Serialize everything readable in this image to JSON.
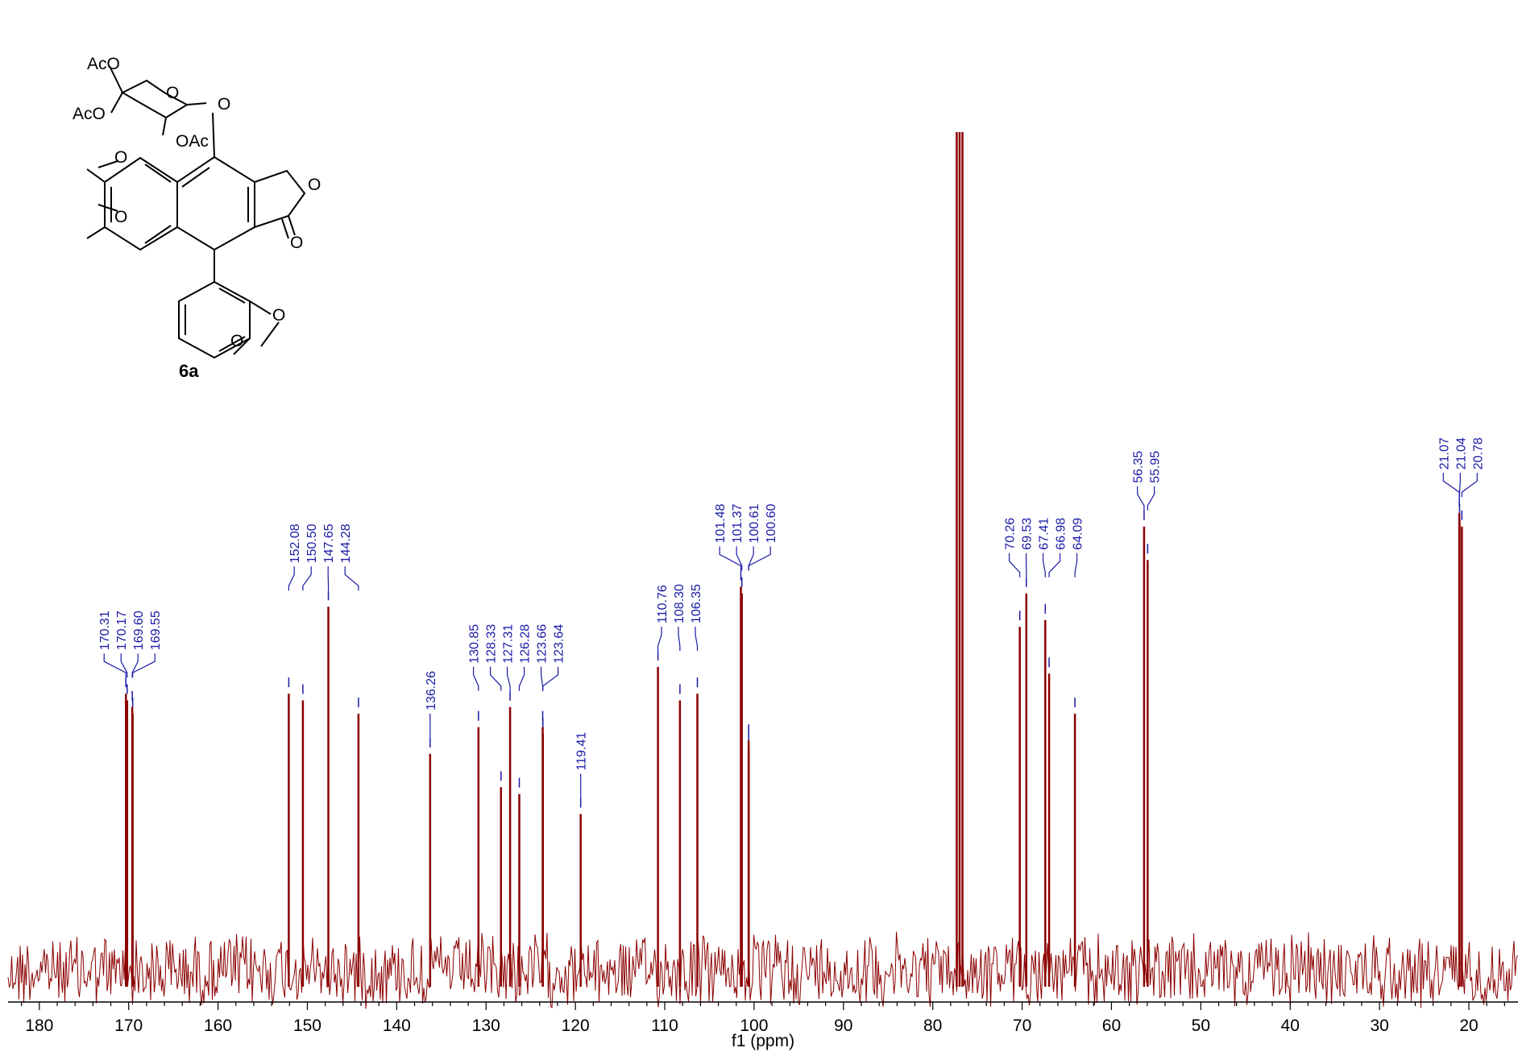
{
  "chart_data": {
    "type": "line",
    "title": "",
    "xlabel": "f1 (ppm)",
    "ylabel": "",
    "xlim": [
      183.5,
      14.5
    ],
    "x_reversed": true,
    "x_ticks": [
      180,
      170,
      160,
      150,
      140,
      130,
      120,
      110,
      100,
      90,
      80,
      70,
      60,
      50,
      40,
      30,
      20
    ],
    "grid": false,
    "legend": "none",
    "series_color": "#8b0000",
    "label_color": "#1a1aa6",
    "peaks": [
      {
        "ppm": 170.31,
        "height": 0.36
      },
      {
        "ppm": 170.17,
        "height": 0.35
      },
      {
        "ppm": 169.6,
        "height": 0.34
      },
      {
        "ppm": 169.55,
        "height": 0.33
      },
      {
        "ppm": 152.08,
        "height": 0.36
      },
      {
        "ppm": 150.5,
        "height": 0.35
      },
      {
        "ppm": 147.65,
        "height": 0.49
      },
      {
        "ppm": 144.28,
        "height": 0.33
      },
      {
        "ppm": 136.26,
        "height": 0.27
      },
      {
        "ppm": 130.85,
        "height": 0.31
      },
      {
        "ppm": 128.33,
        "height": 0.22
      },
      {
        "ppm": 127.31,
        "height": 0.34
      },
      {
        "ppm": 126.28,
        "height": 0.21
      },
      {
        "ppm": 123.66,
        "height": 0.31
      },
      {
        "ppm": 123.64,
        "height": 0.3
      },
      {
        "ppm": 119.41,
        "height": 0.18
      },
      {
        "ppm": 110.76,
        "height": 0.4
      },
      {
        "ppm": 108.3,
        "height": 0.35
      },
      {
        "ppm": 106.35,
        "height": 0.36
      },
      {
        "ppm": 101.48,
        "height": 0.52
      },
      {
        "ppm": 101.37,
        "height": 0.51
      },
      {
        "ppm": 100.61,
        "height": 0.29
      },
      {
        "ppm": 100.6,
        "height": 0.28
      },
      {
        "ppm": 77.32,
        "height": 1.2
      },
      {
        "ppm": 77.0,
        "height": 1.2
      },
      {
        "ppm": 76.68,
        "height": 1.2
      },
      {
        "ppm": 70.26,
        "height": 0.46
      },
      {
        "ppm": 69.53,
        "height": 0.51
      },
      {
        "ppm": 67.41,
        "height": 0.47
      },
      {
        "ppm": 66.98,
        "height": 0.39
      },
      {
        "ppm": 64.09,
        "height": 0.33
      },
      {
        "ppm": 56.35,
        "height": 0.61
      },
      {
        "ppm": 55.95,
        "height": 0.56
      },
      {
        "ppm": 21.07,
        "height": 0.63
      },
      {
        "ppm": 21.04,
        "height": 0.62
      },
      {
        "ppm": 20.78,
        "height": 0.61
      }
    ],
    "peak_label_groups": [
      {
        "labels": [
          "170.31",
          "170.17",
          "169.60",
          "169.55"
        ],
        "ppms": [
          170.31,
          170.17,
          169.6,
          169.55
        ]
      },
      {
        "labels": [
          "152.08",
          "150.50",
          "147.65",
          "144.28"
        ],
        "ppms": [
          152.08,
          150.5,
          147.65,
          144.28
        ]
      },
      {
        "labels": [
          "136.26"
        ],
        "ppms": [
          136.26
        ]
      },
      {
        "labels": [
          "130.85",
          "128.33",
          "127.31",
          "126.28",
          "123.66",
          "123.64"
        ],
        "ppms": [
          130.85,
          128.33,
          127.31,
          126.28,
          123.66,
          123.64
        ]
      },
      {
        "labels": [
          "119.41"
        ],
        "ppms": [
          119.41
        ]
      },
      {
        "labels": [
          "110.76",
          "108.30",
          "106.35"
        ],
        "ppms": [
          110.76,
          108.3,
          106.35
        ]
      },
      {
        "labels": [
          "101.48",
          "101.37",
          "100.61",
          "100.60"
        ],
        "ppms": [
          101.48,
          101.37,
          100.61,
          100.6
        ]
      },
      {
        "labels": [
          "70.26",
          "69.53",
          "67.41",
          "66.98",
          "64.09"
        ],
        "ppms": [
          70.26,
          69.53,
          67.41,
          66.98,
          64.09
        ]
      },
      {
        "labels": [
          "56.35",
          "55.95"
        ],
        "ppms": [
          56.35,
          55.95
        ]
      },
      {
        "labels": [
          "21.07",
          "21.04",
          "20.78"
        ],
        "ppms": [
          21.07,
          21.04,
          20.78
        ]
      }
    ]
  },
  "structure": {
    "compound_label": "6a",
    "labels": {
      "aco_top": "AcO",
      "aco_left": "AcO",
      "oac": "OAc",
      "o_ring": "O",
      "o_glyco": "O",
      "o_ome1": "O",
      "o_ome2": "O",
      "o_lactone": "O",
      "o_carbonyl": "O",
      "o_diox1": "O",
      "o_diox2": "O"
    }
  }
}
